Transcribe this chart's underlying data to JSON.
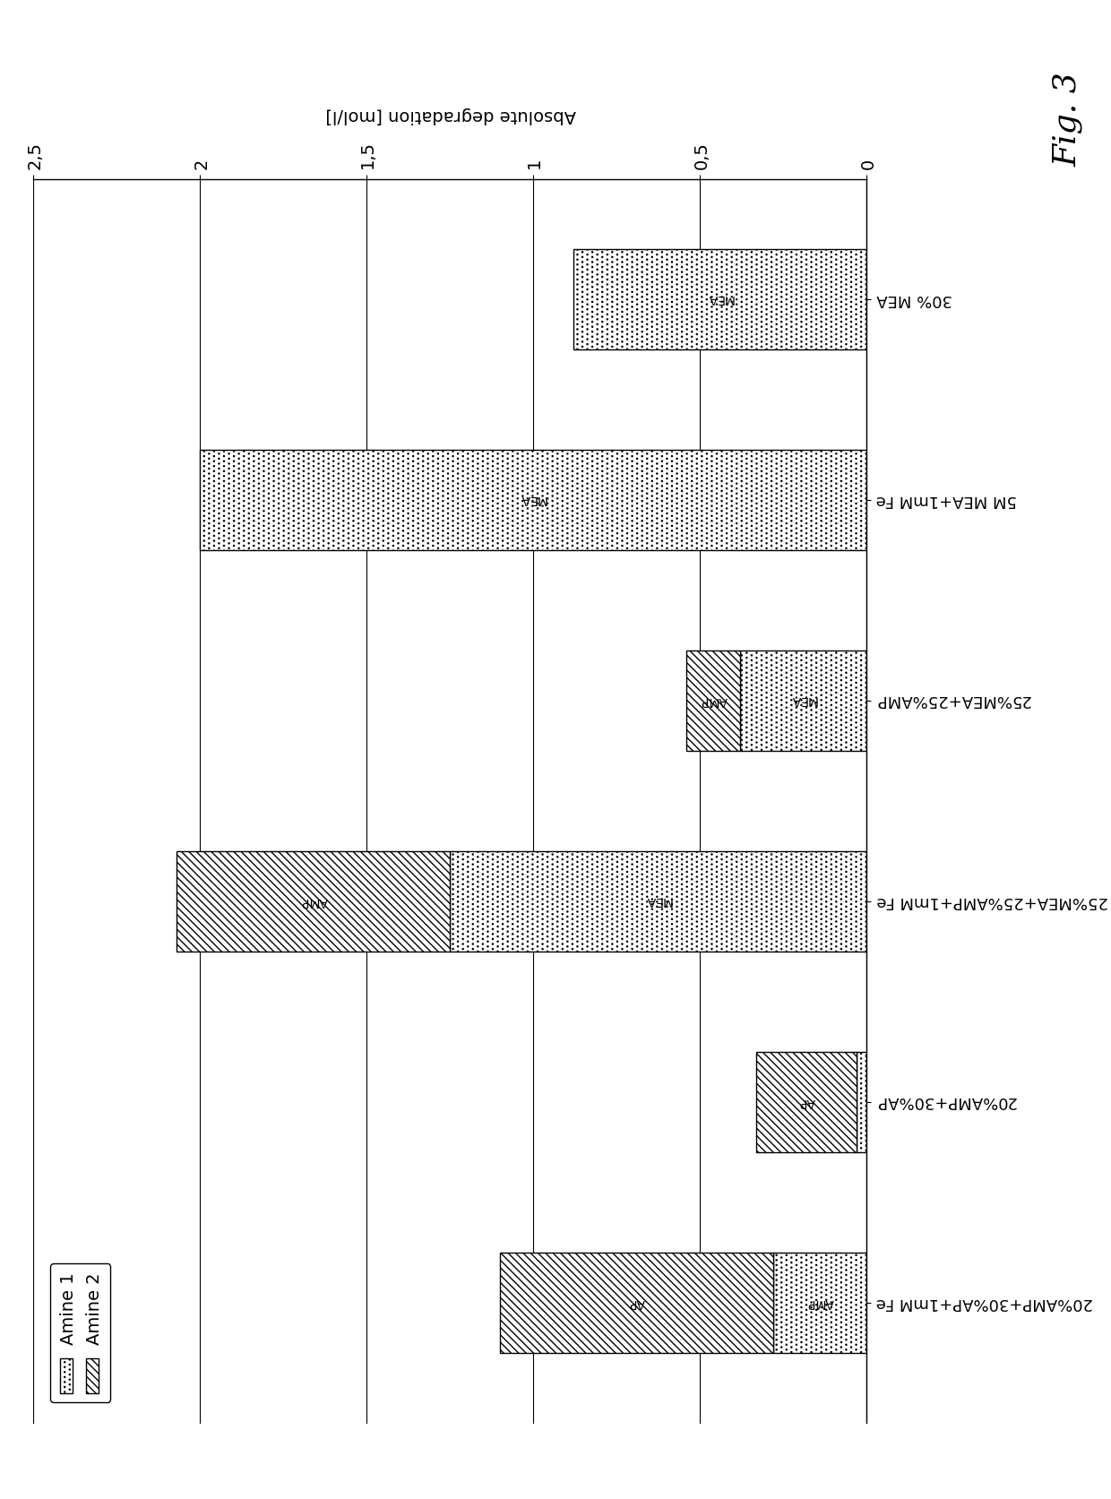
{
  "categories": [
    "20%AMP+30%AP+1mM Fe",
    "20%AMP+30%AP",
    "25%MEA+25%AMP+1mM Fe",
    "25%MEA+25%AMP",
    "5M MEA+1mM Fe",
    "30% MEA"
  ],
  "bars": [
    {
      "amine1_value": 0.28,
      "amine2_value": 0.82,
      "amine1_label": "AMP",
      "amine2_label": "AP"
    },
    {
      "amine1_value": 0.03,
      "amine2_value": 0.3,
      "amine1_label": "AMP",
      "amine2_label": "AP"
    },
    {
      "amine1_value": 1.25,
      "amine2_value": 0.82,
      "amine1_label": "MEA",
      "amine2_label": "AMP"
    },
    {
      "amine1_value": 0.38,
      "amine2_value": 0.16,
      "amine1_label": "MEA",
      "amine2_label": "AMP"
    },
    {
      "amine1_value": 2.0,
      "amine2_value": 0.0,
      "amine1_label": "MEA",
      "amine2_label": ""
    },
    {
      "amine1_value": 0.88,
      "amine2_value": 0.0,
      "amine1_label": "MEA",
      "amine2_label": ""
    }
  ],
  "ylim": [
    0,
    2.5
  ],
  "yticks": [
    0,
    0.5,
    1.0,
    1.5,
    2.0,
    2.5
  ],
  "ytick_labels": [
    "0",
    "0,5",
    "1",
    "1,5",
    "2",
    "2,5"
  ],
  "ylabel": "Absolute degradation [mol/l]",
  "fig_label": "Fig. 3",
  "background_color": "#ffffff"
}
